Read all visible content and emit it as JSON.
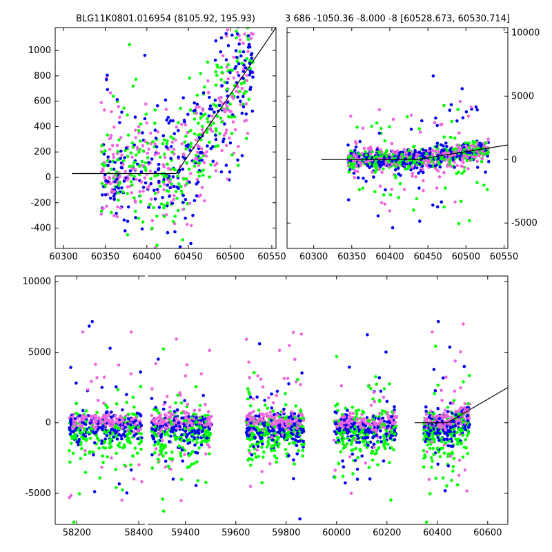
{
  "figure": {
    "title_left": "BLG11K0801.016954 (8105.92, 195.93)",
    "title_right": "3 686 -1050.36 -8.000 -8 [60528.673, 60530.714]"
  },
  "colors": {
    "green": "#00ff00",
    "blue": "#0000ee",
    "magenta": "#ee66dd",
    "model_line": "#000000",
    "axes": "#000000",
    "background": "#ffffff"
  },
  "chart_data": [
    {
      "type": "scatter",
      "panel": "top-left",
      "title": "BLG11K0801.016954 (8105.92, 195.93)",
      "xlabel": "",
      "ylabel": "",
      "xlim": [
        60290,
        60555
      ],
      "ylim": [
        -560,
        1180
      ],
      "xticks": [
        "60300",
        "60350",
        "60400",
        "60450",
        "60500",
        "60550"
      ],
      "yticks": [
        "-400",
        "-200",
        "0",
        "200",
        "400",
        "600",
        "800",
        "1000"
      ],
      "ytick_side": "left",
      "grid": false,
      "series_colors": [
        "green",
        "blue",
        "magenta"
      ],
      "x_range_of_points": [
        60345,
        60528
      ],
      "model_line": {
        "x": [
          60310,
          60435,
          60555
        ],
        "y": [
          30,
          30,
          1180
        ]
      }
    },
    {
      "type": "scatter",
      "panel": "top-right",
      "title": "3 686 -1050.36 -8.000 -8 [60528.673, 60530.714]",
      "xlabel": "",
      "ylabel": "",
      "xlim": [
        60265,
        60555
      ],
      "ylim": [
        -7000,
        10400
      ],
      "xticks": [
        "60300",
        "60350",
        "60400",
        "60450",
        "60500",
        "60550"
      ],
      "yticks": [
        "-5000",
        "0",
        "5000",
        "10000"
      ],
      "ytick_side": "right",
      "grid": false,
      "series_colors": [
        "green",
        "blue",
        "magenta"
      ],
      "x_range_of_points": [
        60345,
        60530
      ],
      "model_line": {
        "x": [
          60310,
          60435,
          60555
        ],
        "y": [
          0,
          0,
          1150
        ]
      }
    },
    {
      "type": "scatter",
      "panel": "bottom",
      "title": "",
      "xlabel": "",
      "ylabel": "",
      "xlim": [
        58130,
        60680
      ],
      "ylim": [
        -7200,
        10400
      ],
      "xticks": [
        "58200",
        "58400",
        "59400",
        "59600",
        "59800",
        "60000",
        "60200",
        "60400",
        "60600"
      ],
      "yticks": [
        "-5000",
        "0",
        "5000",
        "10000"
      ],
      "ytick_side": "left",
      "grid": false,
      "axis_break": "between 58420 and 59250",
      "series_colors": [
        "green",
        "blue",
        "magenta"
      ],
      "seasons": [
        [
          58175,
          58410
        ],
        [
          59265,
          59505
        ],
        [
          59640,
          59870
        ],
        [
          59990,
          60240
        ],
        [
          60345,
          60530
        ]
      ],
      "model_line": {
        "x": [
          60310,
          60440,
          60680
        ],
        "y": [
          0,
          0,
          2500
        ]
      }
    }
  ]
}
